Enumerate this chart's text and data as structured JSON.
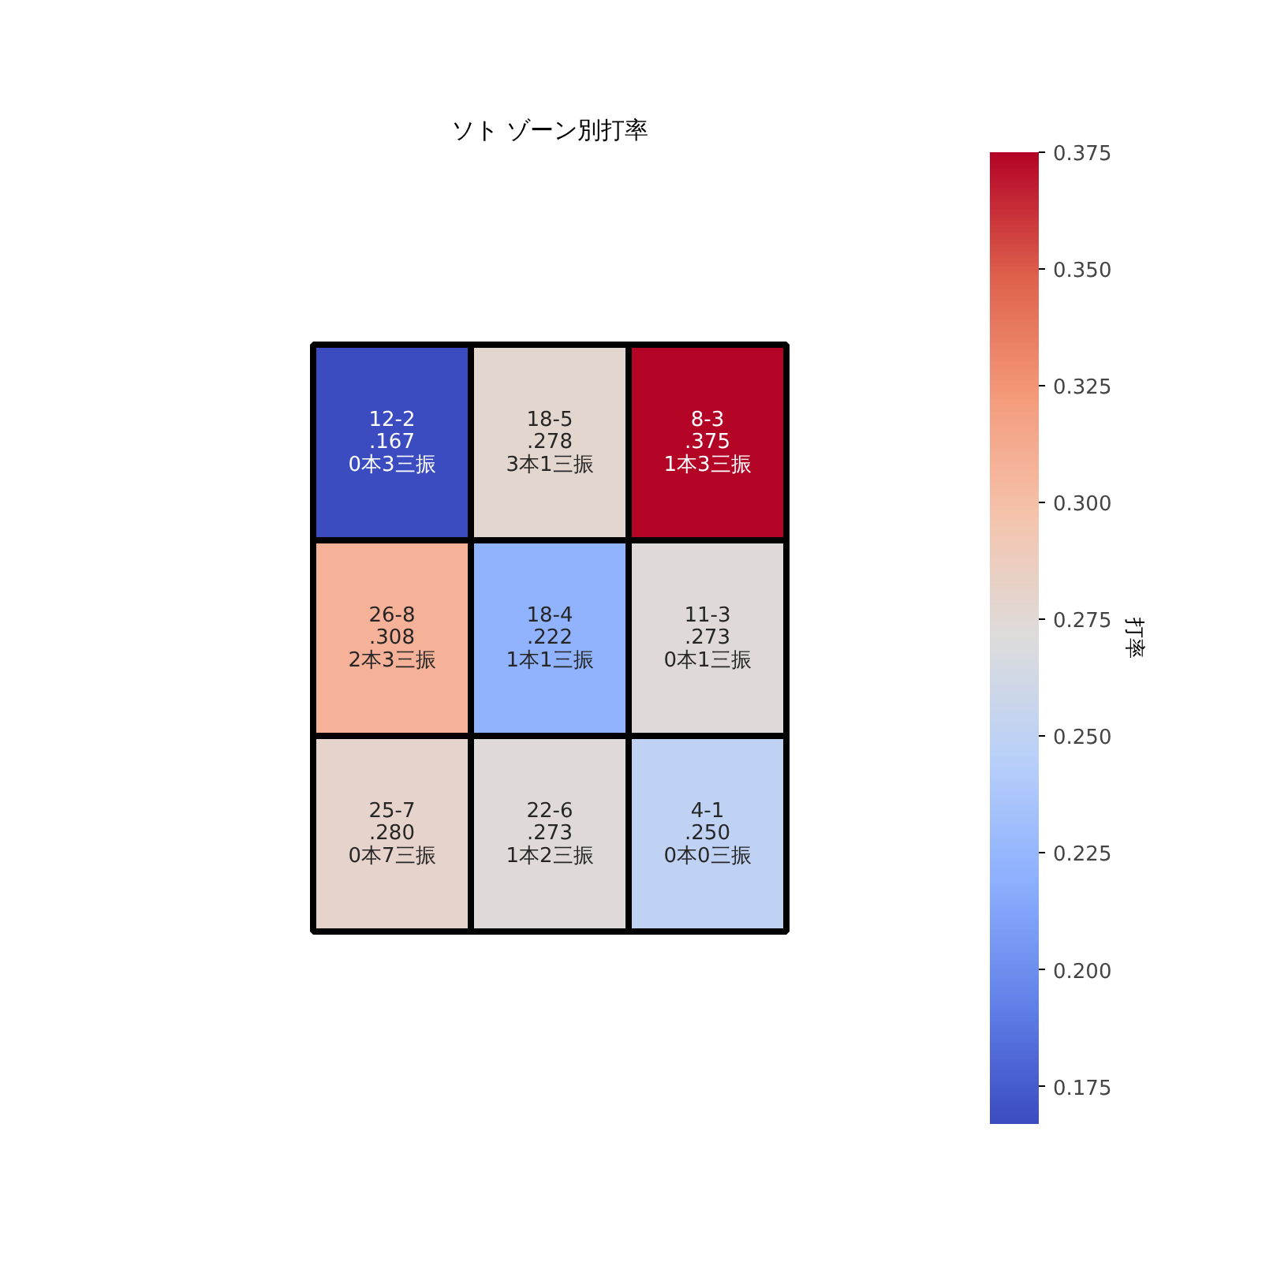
{
  "chart_data": {
    "type": "heatmap",
    "title": "ソト ゾーン別打率",
    "clabel": "打率",
    "categories": [
      null,
      null,
      null
    ],
    "y_categories": [
      null,
      null,
      null
    ],
    "cells": [
      [
        0.167,
        0.278,
        0.375
      ],
      [
        0.308,
        0.222,
        0.273
      ],
      [
        0.28,
        0.273,
        0.25
      ]
    ],
    "cell_labels": [
      [
        "12-2\n.167\n0本3三振",
        "18-5\n.278\n3本1三振",
        "8-3\n.375\n1本3三振"
      ],
      [
        "26-8\n.308\n2本3三振",
        "18-4\n.222\n1本1三振",
        "11-3\n.273\n0本1三振"
      ],
      [
        "25-7\n.280\n0本7三振",
        "22-6\n.273\n1本2三振",
        "4-1\n.250\n0本0三振"
      ]
    ],
    "clim": [
      0.167,
      0.375
    ],
    "cticks": [
      {
        "value": 0.175,
        "label": "0.175"
      },
      {
        "value": 0.2,
        "label": "0.200"
      },
      {
        "value": 0.225,
        "label": "0.225"
      },
      {
        "value": 0.25,
        "label": "0.250"
      },
      {
        "value": 0.275,
        "label": "0.275"
      },
      {
        "value": 0.3,
        "label": "0.300"
      },
      {
        "value": 0.325,
        "label": "0.325"
      },
      {
        "value": 0.35,
        "label": "0.350"
      },
      {
        "value": 0.375,
        "label": "0.375"
      }
    ]
  }
}
